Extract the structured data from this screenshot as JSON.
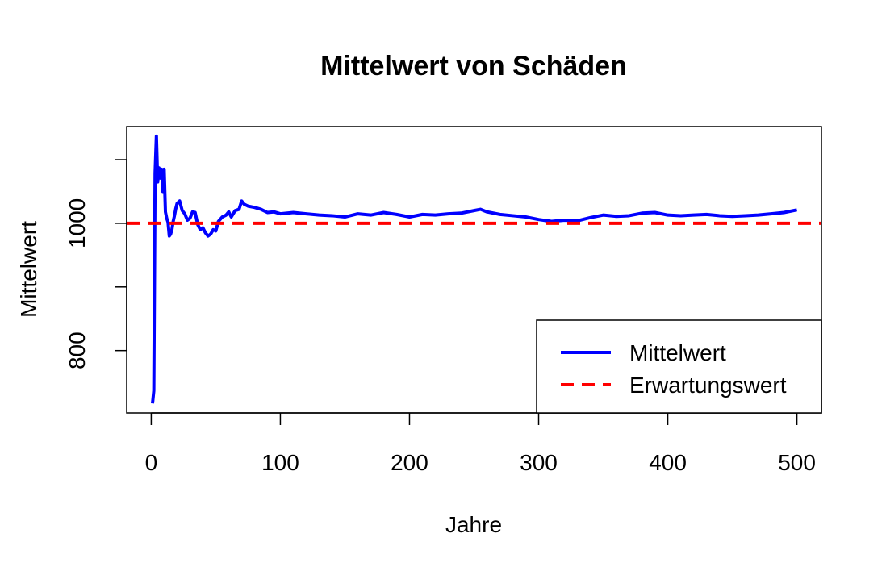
{
  "chart_data": {
    "type": "line",
    "title": "Mittelwert von Schäden",
    "xlabel": "Jahre",
    "ylabel": "Mittelwert",
    "xlim": [
      -19,
      519
    ],
    "ylim": [
      702,
      1152
    ],
    "x_ticks": [
      0,
      100,
      200,
      300,
      400,
      500
    ],
    "y_ticks": [
      800,
      1000
    ],
    "y_minor_ticks": [
      900,
      1100
    ],
    "grid": false,
    "legend_position": "bottom-right",
    "colors": {
      "mittelwert": "#0000ff",
      "erwartungswert": "#ff0000"
    },
    "series": [
      {
        "name": "Mittelwert",
        "style": "solid",
        "x": [
          1,
          2,
          3,
          4,
          5,
          6,
          7,
          8,
          9,
          10,
          11,
          12,
          13,
          14,
          15,
          16,
          17,
          18,
          19,
          20,
          22,
          24,
          26,
          28,
          30,
          32,
          34,
          36,
          38,
          40,
          42,
          44,
          46,
          48,
          50,
          52,
          55,
          58,
          60,
          62,
          65,
          68,
          70,
          72,
          75,
          80,
          85,
          90,
          95,
          100,
          110,
          120,
          130,
          140,
          150,
          160,
          170,
          180,
          190,
          200,
          210,
          220,
          230,
          240,
          250,
          255,
          260,
          270,
          280,
          290,
          300,
          310,
          320,
          330,
          340,
          350,
          360,
          370,
          380,
          390,
          400,
          410,
          420,
          430,
          440,
          450,
          460,
          470,
          480,
          490,
          500
        ],
        "y": [
          717,
          737,
          1079,
          1137,
          1065,
          1087,
          1071,
          1085,
          1050,
          1085,
          1018,
          1008,
          1002,
          980,
          983,
          990,
          1003,
          1012,
          1023,
          1031,
          1035,
          1020,
          1015,
          1005,
          1008,
          1018,
          1017,
          998,
          990,
          993,
          985,
          980,
          983,
          990,
          988,
          1003,
          1010,
          1013,
          1018,
          1010,
          1020,
          1022,
          1035,
          1030,
          1027,
          1025,
          1022,
          1017,
          1018,
          1015,
          1017,
          1015,
          1013,
          1012,
          1010,
          1015,
          1013,
          1017,
          1014,
          1010,
          1014,
          1013,
          1015,
          1016,
          1020,
          1022,
          1018,
          1014,
          1012,
          1010,
          1006,
          1003,
          1005,
          1004,
          1009,
          1013,
          1011,
          1012,
          1016,
          1017,
          1013,
          1012,
          1013,
          1014,
          1012,
          1011,
          1012,
          1013,
          1015,
          1017,
          1021
        ]
      },
      {
        "name": "Erwartungswert",
        "style": "dashed",
        "x": [
          -19,
          519
        ],
        "y": [
          1000,
          1000
        ]
      }
    ]
  }
}
